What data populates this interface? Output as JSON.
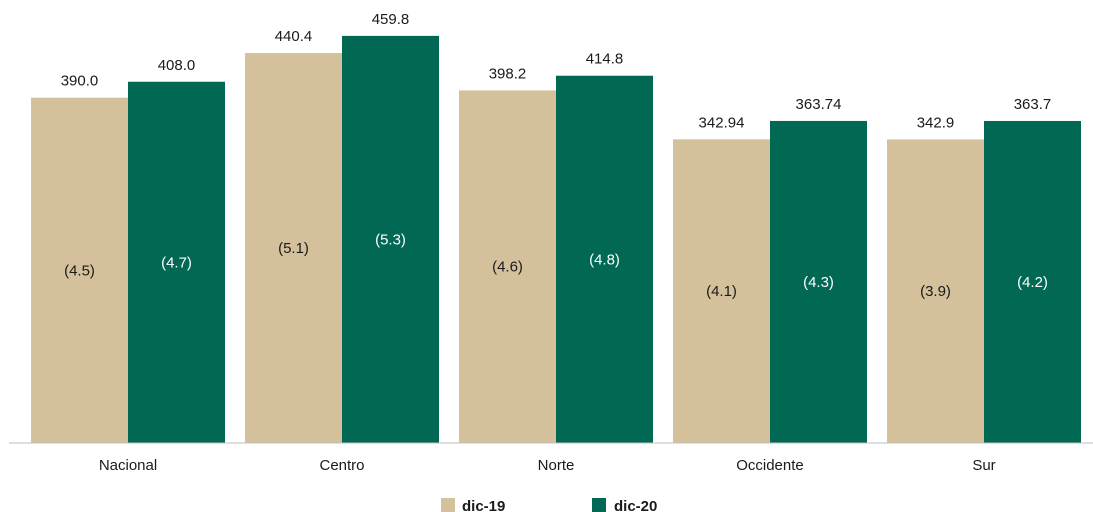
{
  "chart_data": {
    "type": "bar",
    "categories": [
      "Nacional",
      "Centro",
      "Norte",
      "Occidente",
      "Sur"
    ],
    "series": [
      {
        "name": "dic-19",
        "color": "#d4c19c",
        "values": [
          390.0,
          440.4,
          398.2,
          342.94,
          342.9
        ],
        "value_labels": [
          "390.0",
          "440.4",
          "398.2",
          "342.94",
          "342.9"
        ],
        "inner_labels": [
          "(4.5)",
          "(5.1)",
          "(4.6)",
          "(4.1)",
          "(3.9)"
        ],
        "inner_label_color": "#1a1a1a"
      },
      {
        "name": "dic-20",
        "color": "#006853",
        "values": [
          408.0,
          459.8,
          414.8,
          363.74,
          363.7
        ],
        "value_labels": [
          "408.0",
          "459.8",
          "414.8",
          "363.74",
          "363.7"
        ],
        "inner_labels": [
          "(4.7)",
          "(5.3)",
          "(4.8)",
          "(4.3)",
          "(4.2)"
        ],
        "inner_label_color": "#ffffff"
      }
    ],
    "ylim": [
      0,
      480
    ],
    "grid": false,
    "legend": "bottom-center"
  }
}
